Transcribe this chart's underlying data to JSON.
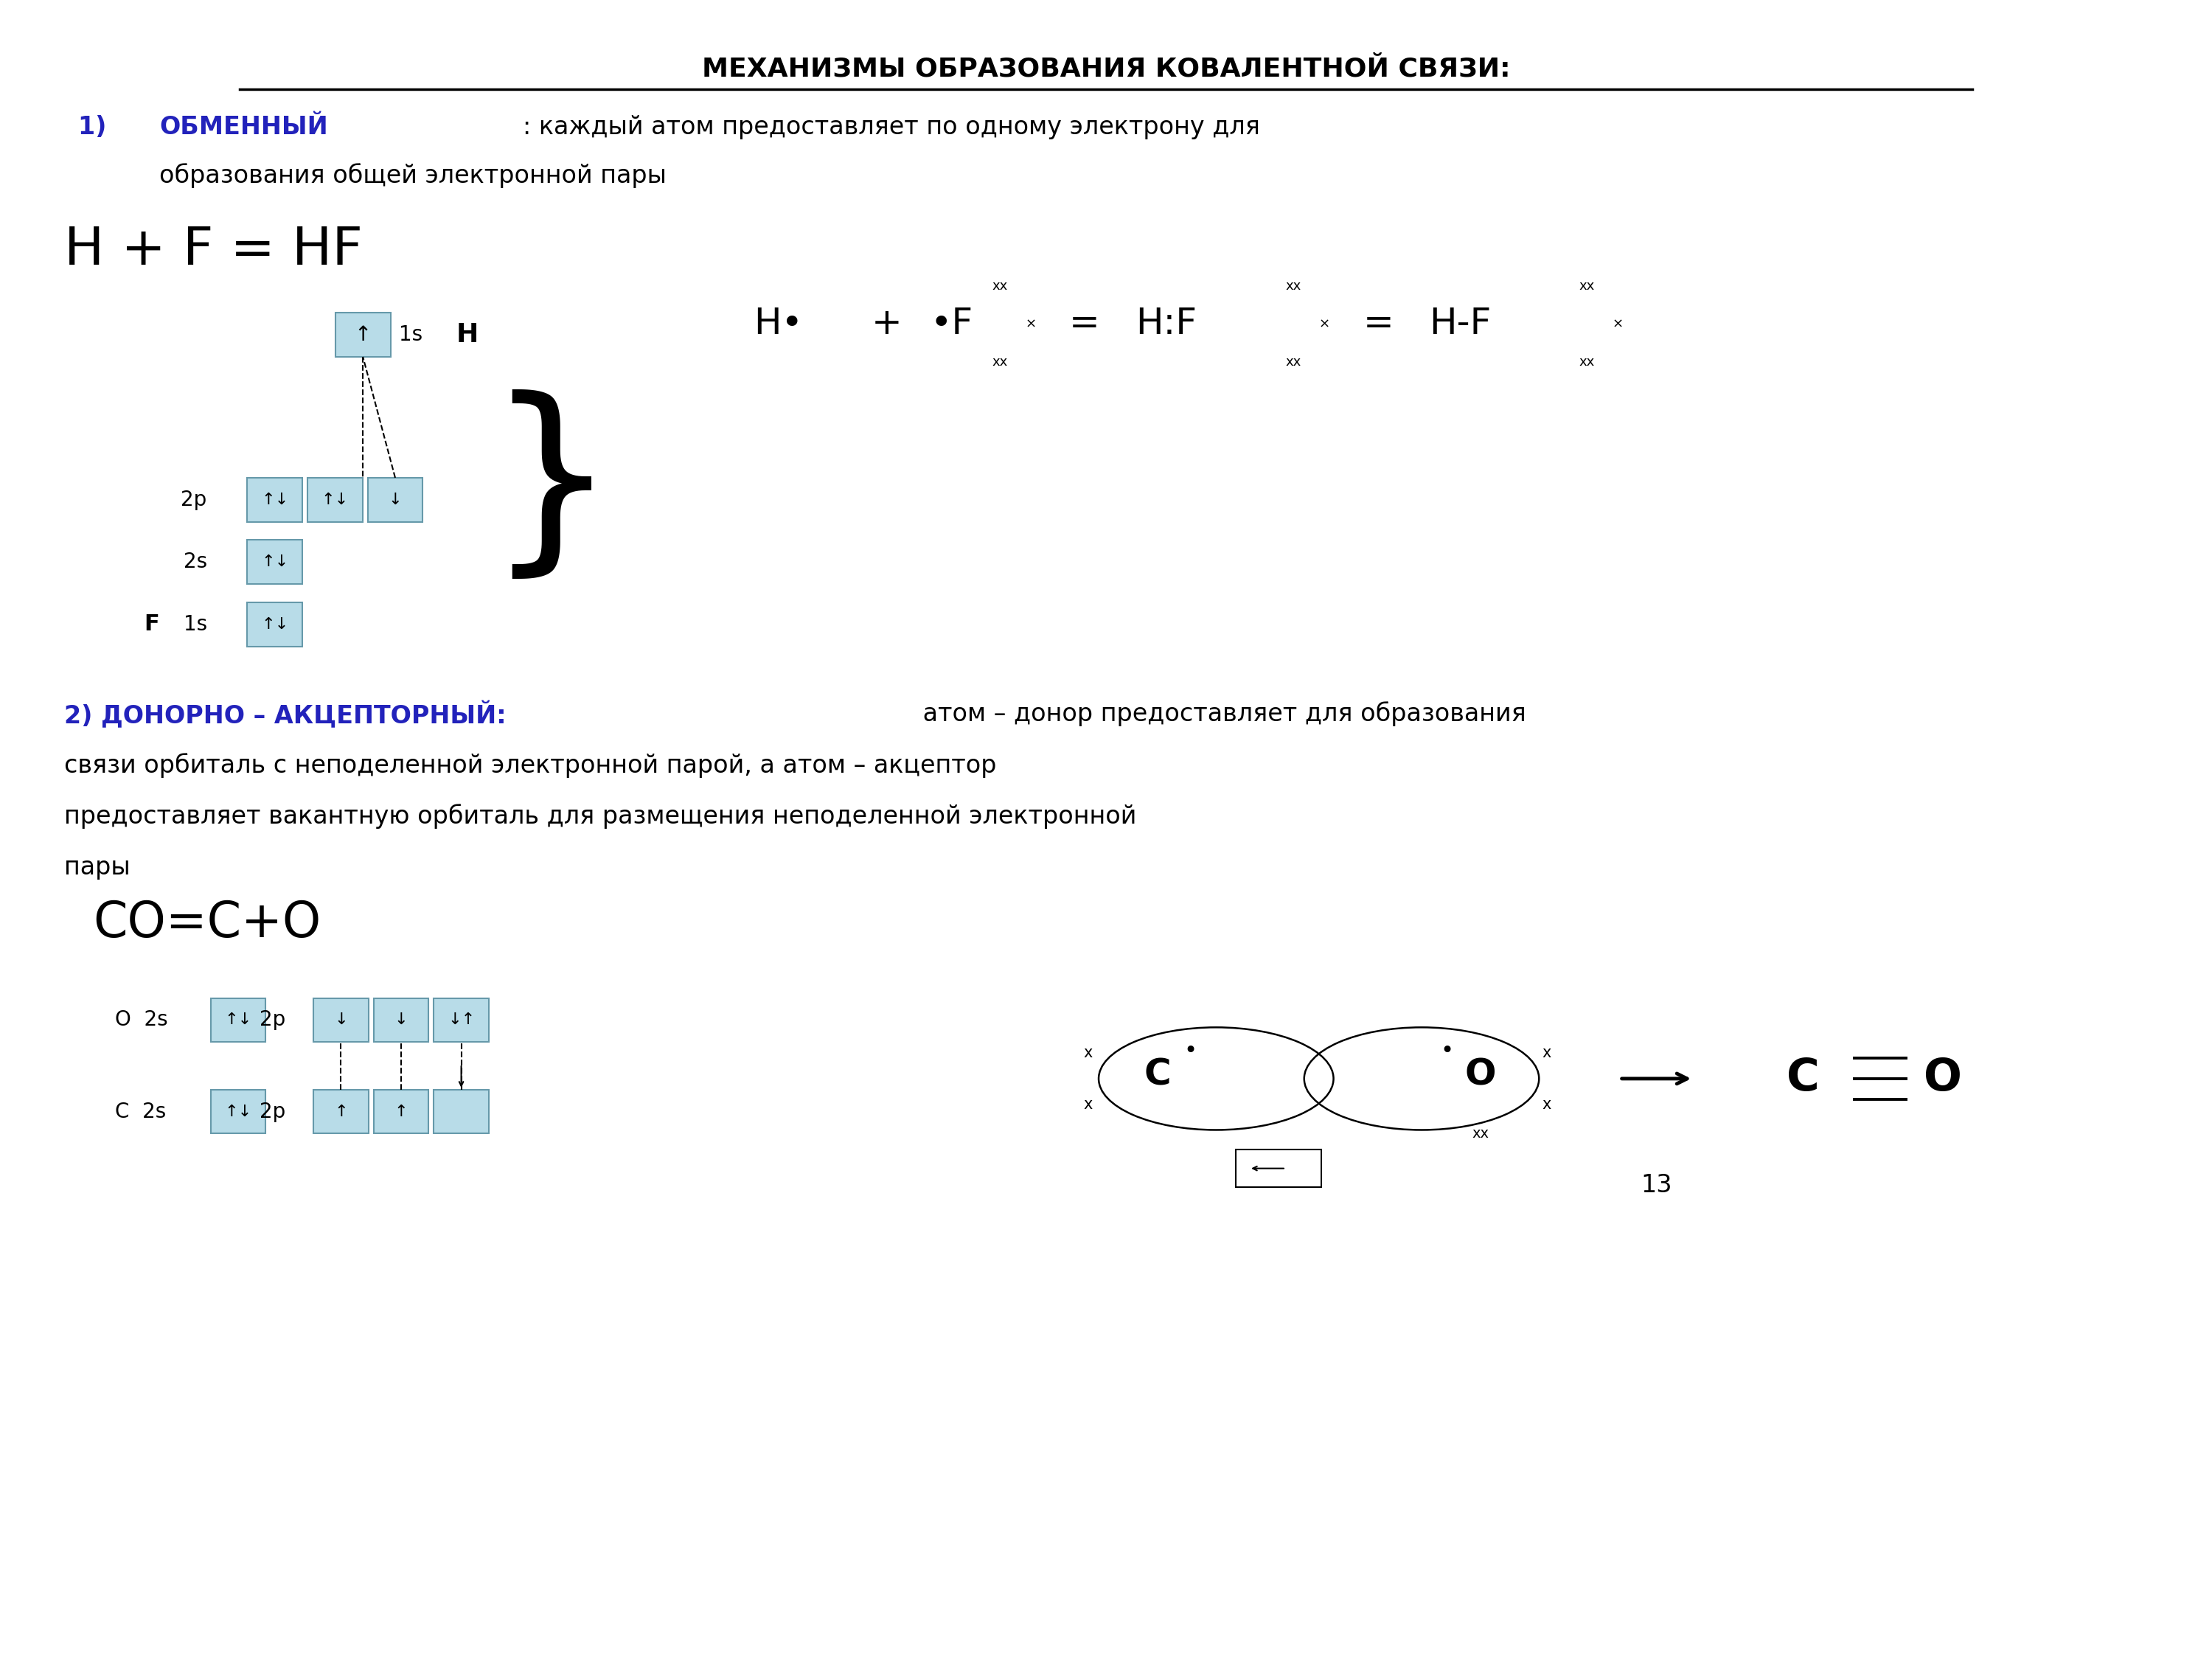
{
  "title": "МЕХАНИЗМЫ ОБРАЗОВАНИЯ КОВАЛЕНТНОЙ СВЯЗИ:",
  "bg_color": "#ffffff",
  "text_color": "#000000",
  "blue_color": "#2222bb",
  "box_color": "#b8dce8",
  "box_edge": "#6699aa",
  "section1_bold": "ОБМЕННЫЙ",
  "section1_rest": ": каждый атом предоставляет по одному электрону для",
  "section1_line2": "образования общей электронной пары",
  "equation1": "H + F = HF",
  "section2_bold": "2) ДОНОРНО – АКЦЕПТОРНЫЙ:",
  "section2_rest": " атом – донор предоставляет для образования",
  "section2_line2": "связи орбиталь с неподеленной электронной парой, а атом – акцептор",
  "section2_line3": "предоставляет вакантную орбиталь для размещения неподеленной электронной",
  "section2_line4": "пары",
  "equation2": "CO=C+O",
  "page_num": "13"
}
